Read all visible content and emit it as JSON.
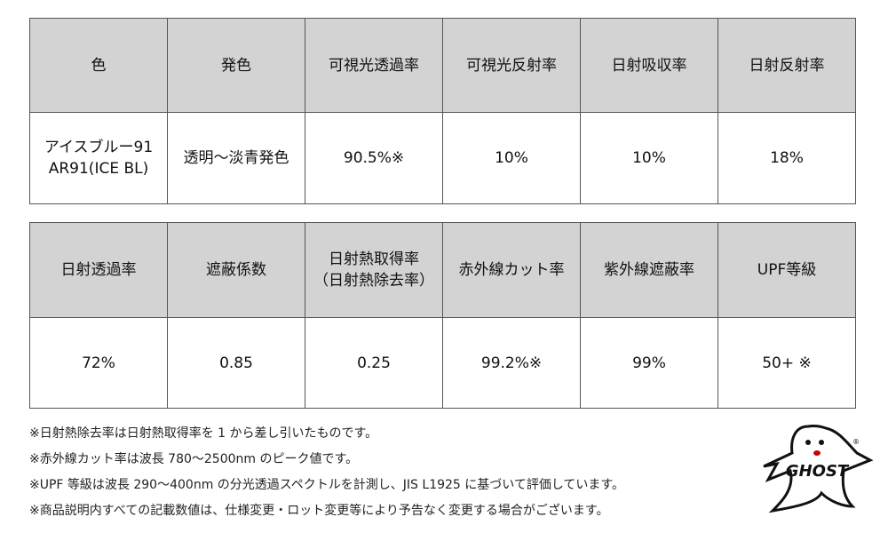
{
  "table1": {
    "headers": [
      "色",
      "発色",
      "可視光透過率",
      "可視光反射率",
      "日射吸収率",
      "日射反射率"
    ],
    "row": [
      "アイスブルー91\nAR91(ICE BL)",
      "透明～淡青発色",
      "90.5%※",
      "10%",
      "10%",
      "18%"
    ]
  },
  "table2": {
    "headers": [
      "日射透過率",
      "遮蔽係数",
      "日射熱取得率\n（日射熱除去率）",
      "赤外線カット率",
      "紫外線遮蔽率",
      "UPF等級"
    ],
    "row": [
      "72%",
      "0.85",
      "0.25",
      "99.2%※",
      "99%",
      "50+ ※"
    ]
  },
  "notes": [
    "※日射熱除去率は日射熱取得率を 1 から差し引いたものです。",
    "※赤外線カット率は波長 780～2500nm のピーク値です。",
    "※UPF 等級は波長 290～400nm の分光透過スペクトルを計測し、JIS L1925 に基づいて評価しています。",
    "※商品説明内すべての記載数値は、仕様変更・ロット変更等により予告なく変更する場合がございます。"
  ],
  "logo": {
    "text": "GHOST",
    "icon": "ghost-logo-icon"
  }
}
